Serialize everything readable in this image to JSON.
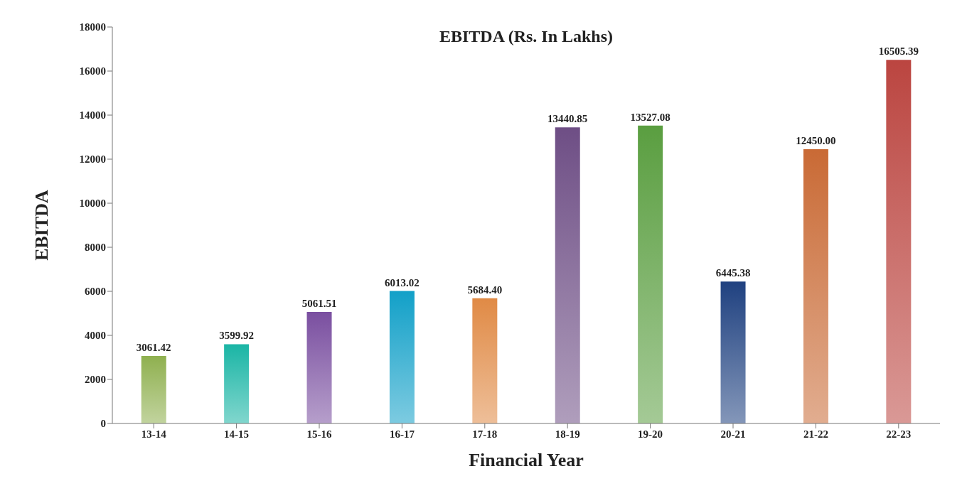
{
  "chart_data": {
    "type": "bar",
    "title": "EBITDA (Rs. In Lakhs)",
    "xlabel": "Financial Year",
    "ylabel": "EBITDA",
    "categories": [
      "13-14",
      "14-15",
      "15-16",
      "16-17",
      "17-18",
      "18-19",
      "19-20",
      "20-21",
      "21-22",
      "22-23"
    ],
    "values": [
      3061.42,
      3599.92,
      5061.51,
      6013.02,
      5684.4,
      13440.85,
      13527.08,
      6445.38,
      12450.0,
      16505.39
    ],
    "value_labels": [
      "3061.42",
      "3599.92",
      "5061.51",
      "6013.02",
      "5684.40",
      "13440.85",
      "13527.08",
      "6445.38",
      "12450.00",
      "16505.39"
    ],
    "colors": [
      "#8fb04f",
      "#1ab5a5",
      "#7a4fa0",
      "#12a0c8",
      "#e08a45",
      "#6e4e85",
      "#5a9e40",
      "#1f4180",
      "#c96a35",
      "#bb4540"
    ],
    "ylim": [
      0,
      18000
    ],
    "yticks": [
      0,
      2000,
      4000,
      6000,
      8000,
      10000,
      12000,
      14000,
      16000,
      18000
    ],
    "grid": false,
    "legend": false
  }
}
